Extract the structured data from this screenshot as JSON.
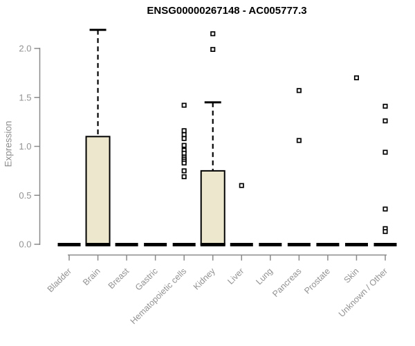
{
  "chart_data": {
    "type": "box",
    "title": "ENSG00000267148 - AC005777.3",
    "xlabel": "",
    "ylabel": "Expression",
    "ylim": [
      0,
      2.2
    ],
    "yticks": [
      "0.0",
      "0.5",
      "1.0",
      "1.5",
      "2.0"
    ],
    "grid": false,
    "legend": null,
    "categories": [
      "Bladder",
      "Brain",
      "Breast",
      "Gastric",
      "Hematopoietic cells",
      "Kidney",
      "Liver",
      "Lung",
      "Pancreas",
      "Prostate",
      "Skin",
      "Unknown / Other"
    ],
    "boxes": [
      {
        "category": "Bladder",
        "q1": 0,
        "median": 0,
        "q3": 0,
        "whisker_low": 0,
        "whisker_high": 0,
        "outliers": []
      },
      {
        "category": "Brain",
        "q1": 0,
        "median": 0,
        "q3": 1.1,
        "whisker_low": 0,
        "whisker_high": 2.19,
        "outliers": []
      },
      {
        "category": "Breast",
        "q1": 0,
        "median": 0,
        "q3": 0,
        "whisker_low": 0,
        "whisker_high": 0,
        "outliers": []
      },
      {
        "category": "Gastric",
        "q1": 0,
        "median": 0,
        "q3": 0,
        "whisker_low": 0,
        "whisker_high": 0,
        "outliers": []
      },
      {
        "category": "Hematopoietic cells",
        "q1": 0,
        "median": 0,
        "q3": 0,
        "whisker_low": 0,
        "whisker_high": 0,
        "outliers": [
          1.42,
          1.16,
          1.12,
          1.08,
          1.01,
          0.96,
          0.93,
          0.89,
          0.87,
          0.85,
          0.83,
          0.75,
          0.69
        ]
      },
      {
        "category": "Kidney",
        "q1": 0,
        "median": 0,
        "q3": 0.75,
        "whisker_low": 0,
        "whisker_high": 1.45,
        "outliers": [
          2.15,
          1.99
        ]
      },
      {
        "category": "Liver",
        "q1": 0,
        "median": 0,
        "q3": 0,
        "whisker_low": 0,
        "whisker_high": 0,
        "outliers": [
          0.6
        ]
      },
      {
        "category": "Lung",
        "q1": 0,
        "median": 0,
        "q3": 0,
        "whisker_low": 0,
        "whisker_high": 0,
        "outliers": []
      },
      {
        "category": "Pancreas",
        "q1": 0,
        "median": 0,
        "q3": 0,
        "whisker_low": 0,
        "whisker_high": 0,
        "outliers": [
          1.57,
          1.06
        ]
      },
      {
        "category": "Prostate",
        "q1": 0,
        "median": 0,
        "q3": 0,
        "whisker_low": 0,
        "whisker_high": 0,
        "outliers": []
      },
      {
        "category": "Skin",
        "q1": 0,
        "median": 0,
        "q3": 0,
        "whisker_low": 0,
        "whisker_high": 0,
        "outliers": [
          1.7
        ]
      },
      {
        "category": "Unknown / Other",
        "q1": 0,
        "median": 0,
        "q3": 0,
        "whisker_low": 0,
        "whisker_high": 0,
        "outliers": [
          1.41,
          1.26,
          0.94,
          0.36,
          0.16,
          0.13
        ]
      }
    ],
    "style": {
      "box_fill": "#EDE8CD",
      "box_stroke": "#000000",
      "median_color": "#000000",
      "whisker_color": "#000000",
      "outlier_fill": "#FFFFFF",
      "outlier_stroke": "#000000",
      "axis_color": "#8A8A8A",
      "tick_label_color": "#929292",
      "title_color": "#000000",
      "background": "#FFFFFF"
    }
  }
}
